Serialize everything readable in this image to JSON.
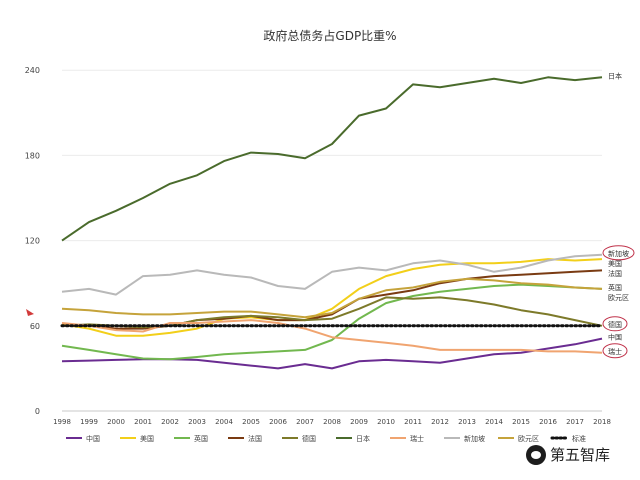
{
  "chart_data": {
    "type": "line",
    "title": "政府总债务占GDP比重%",
    "xlabel": "",
    "ylabel": "",
    "x": [
      1998,
      1999,
      2000,
      2001,
      2002,
      2003,
      2004,
      2005,
      2006,
      2007,
      2008,
      2009,
      2010,
      2011,
      2012,
      2013,
      2014,
      2015,
      2016,
      2017,
      2018
    ],
    "ylim": [
      0,
      250
    ],
    "yticks": [
      0,
      60,
      120,
      180,
      240
    ],
    "grid": true,
    "legend": "bottom",
    "series": [
      {
        "name": "中国",
        "color": "#6a2c91",
        "label_right": "中国",
        "values": [
          35,
          35.5,
          36,
          36.5,
          36.5,
          36,
          34,
          32,
          30,
          33,
          30,
          35,
          36,
          35,
          34,
          37,
          40,
          41,
          44,
          47,
          51
        ]
      },
      {
        "name": "美国",
        "color": "#f2cf1a",
        "label_right": "美国",
        "values": [
          61,
          58,
          53,
          53,
          55,
          58,
          65,
          66,
          64,
          64,
          72,
          86,
          95,
          100,
          103,
          104,
          104,
          105,
          107,
          106,
          107
        ]
      },
      {
        "name": "英国",
        "color": "#72b84f",
        "label_right": "英国",
        "values": [
          46,
          43,
          40,
          37,
          36.5,
          38,
          40,
          41,
          42,
          43,
          50,
          65,
          76,
          81,
          84,
          86,
          88,
          89,
          88,
          87,
          86
        ]
      },
      {
        "name": "法国",
        "color": "#7a3b12",
        "label_right": "法国",
        "values": [
          60,
          60,
          58,
          58,
          60,
          64,
          65,
          67,
          64,
          64,
          68,
          79,
          82,
          85,
          90,
          93,
          95,
          96,
          97,
          98,
          99
        ]
      },
      {
        "name": "德国",
        "color": "#7d7a2a",
        "label_right": "德国",
        "values": [
          60,
          61,
          60,
          59,
          60,
          64,
          66,
          67,
          66,
          64,
          65,
          72,
          80,
          79,
          80,
          78,
          75,
          71,
          68,
          64,
          60
        ]
      },
      {
        "name": "日本",
        "color": "#4a6b2c",
        "label_right": "日本",
        "values": [
          120,
          133,
          141,
          150,
          160,
          166,
          176,
          182,
          181,
          178,
          188,
          208,
          213,
          230,
          228,
          231,
          234,
          231,
          235,
          233,
          235
        ]
      },
      {
        "name": "瑞士",
        "color": "#f0a470",
        "label_right": "瑞士",
        "values": [
          62,
          60,
          57,
          56,
          62,
          62,
          63,
          64,
          62,
          58,
          52,
          50,
          48,
          46,
          43,
          43,
          43,
          43,
          42,
          42,
          41
        ]
      },
      {
        "name": "新加坡",
        "color": "#b9b9b9",
        "label_right": "新加坡",
        "values": [
          84,
          86,
          82,
          95,
          96,
          99,
          96,
          94,
          88,
          86,
          98,
          101,
          99,
          104,
          106,
          103,
          98,
          101,
          106,
          109,
          110
        ]
      },
      {
        "name": "欧元区",
        "color": "#c5a33b",
        "label_right": "欧元区",
        "values": [
          72,
          71,
          69,
          68,
          68,
          69,
          70,
          70,
          68,
          66,
          69,
          79,
          85,
          87,
          91,
          93,
          92,
          90,
          89,
          87,
          86
        ]
      },
      {
        "name": "标准",
        "color": "#111111",
        "dotted": true,
        "label_right": "",
        "values": [
          60,
          60,
          60,
          60,
          60,
          60,
          60,
          60,
          60,
          60,
          60,
          60,
          60,
          60,
          60,
          60,
          60,
          60,
          60,
          60,
          60
        ]
      }
    ],
    "circled_labels": [
      "新加坡",
      "德国",
      "瑞士"
    ]
  },
  "watermark": "第五智库"
}
